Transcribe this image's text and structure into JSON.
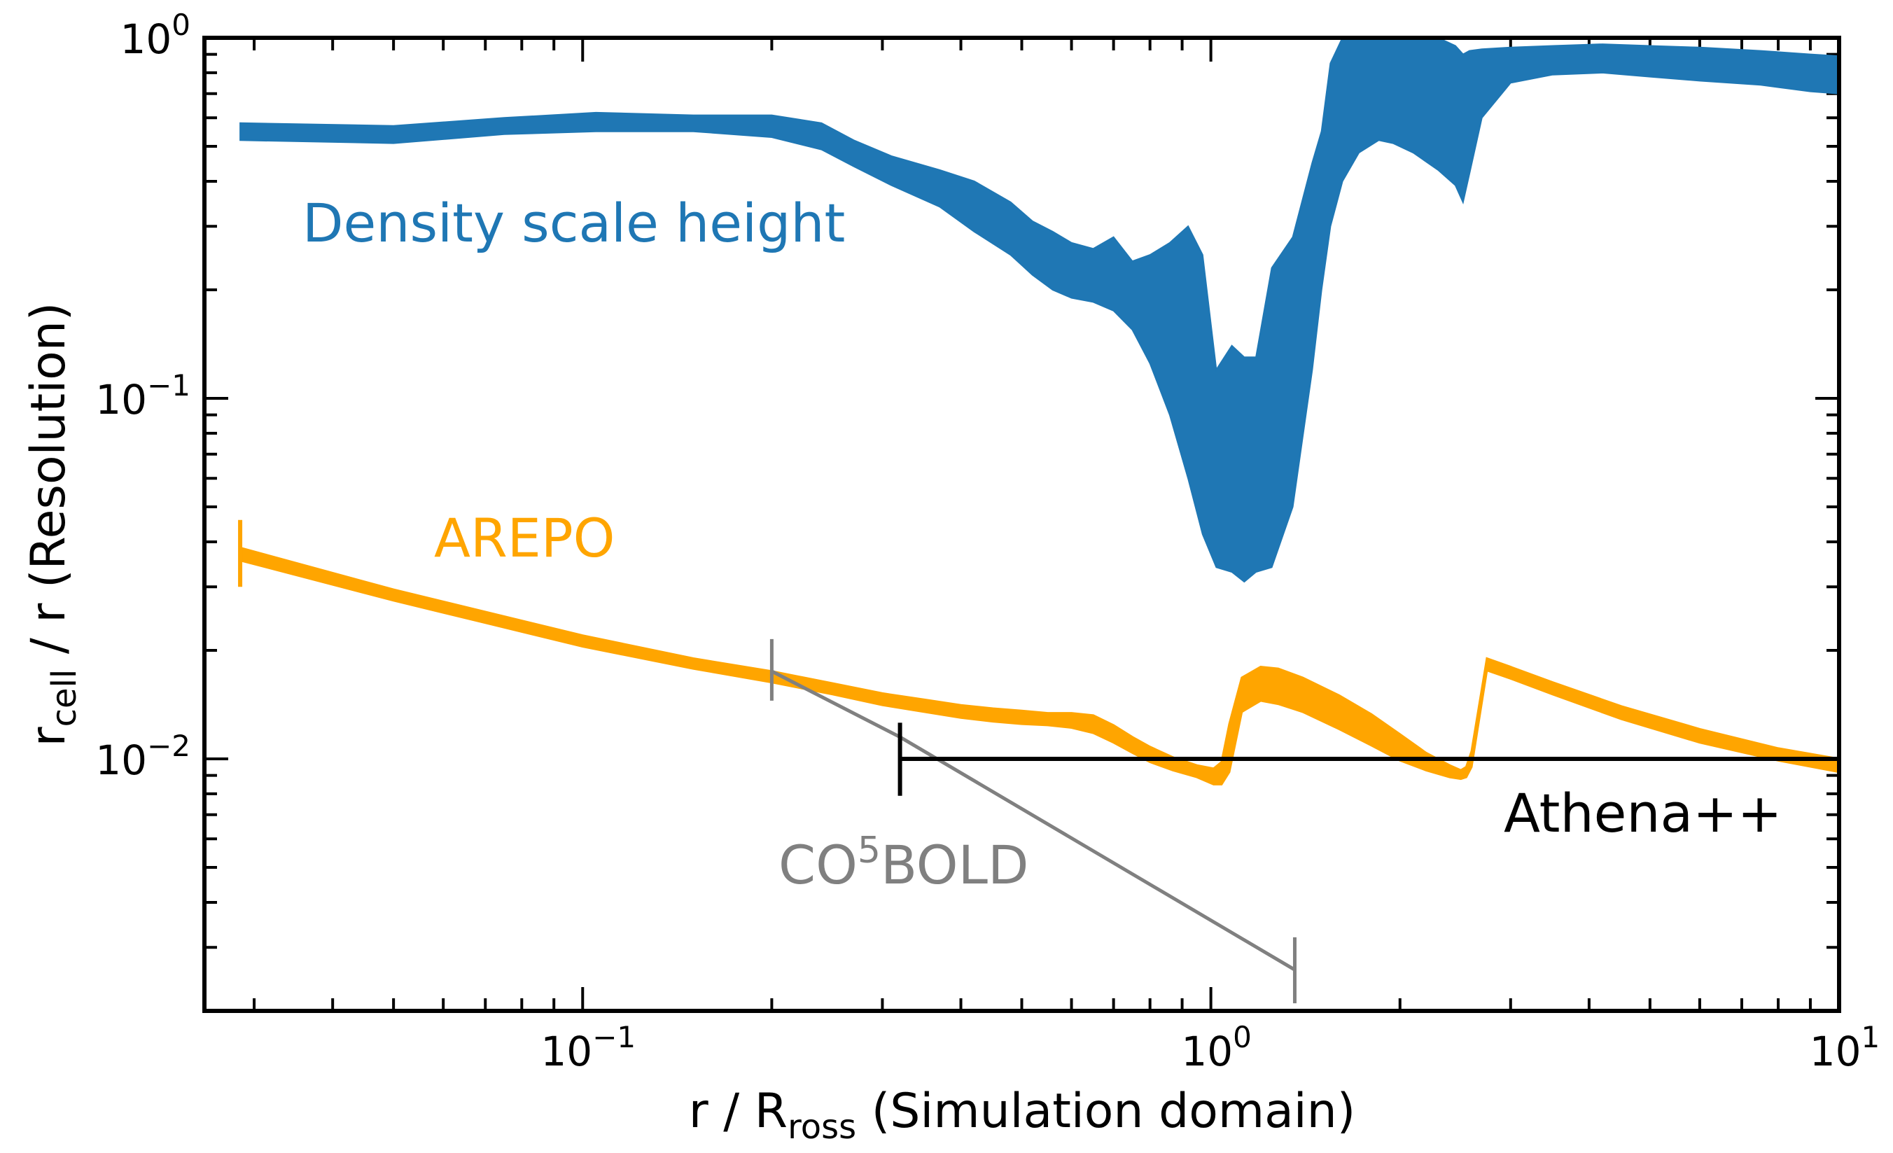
{
  "chart_data": {
    "type": "line",
    "title": "",
    "xscale": "log",
    "yscale": "log",
    "xlim": [
      0.025,
      10
    ],
    "ylim": [
      0.002,
      1
    ],
    "xlabel": {
      "main": "r / R",
      "sub": "ross",
      "rest": " (Simulation domain)"
    },
    "ylabel": {
      "main": "r",
      "sub": "cell",
      "rest": " / r (Resolution)"
    },
    "x_ticks": [
      {
        "value": 0.1,
        "base": "10",
        "exp": "−1"
      },
      {
        "value": 1,
        "base": "10",
        "exp": "0"
      },
      {
        "value": 10,
        "base": "10",
        "exp": "1"
      }
    ],
    "y_ticks": [
      {
        "value": 0.01,
        "base": "10",
        "exp": "−2"
      },
      {
        "value": 0.1,
        "base": "10",
        "exp": "−1"
      },
      {
        "value": 1,
        "base": "10",
        "exp": "0"
      }
    ],
    "colors": {
      "density": "#1f77b4",
      "arepo": "#ffa500",
      "athena": "#000000",
      "co5bold": "#808080"
    },
    "series": [
      {
        "name": "Density scale height",
        "kind": "band",
        "label": "Density scale height",
        "x": [
          0.0285,
          0.05,
          0.075,
          0.105,
          0.15,
          0.2,
          0.24,
          0.27,
          0.31,
          0.37,
          0.42,
          0.48,
          0.52,
          0.56,
          0.6,
          0.65,
          0.7,
          0.75,
          0.8,
          0.86,
          0.92,
          0.97,
          1.02,
          1.08,
          1.13,
          1.18,
          1.25,
          1.35,
          1.45,
          1.5,
          1.55,
          1.62,
          1.72,
          1.85,
          1.95,
          2.1,
          2.3,
          2.45,
          2.52,
          2.58,
          2.7,
          3.0,
          3.5,
          4.2,
          5.0,
          6.0,
          7.5,
          9.0,
          10.0
        ],
        "lower": [
          0.52,
          0.51,
          0.54,
          0.55,
          0.55,
          0.53,
          0.49,
          0.44,
          0.39,
          0.34,
          0.29,
          0.25,
          0.22,
          0.2,
          0.19,
          0.185,
          0.175,
          0.155,
          0.125,
          0.09,
          0.06,
          0.042,
          0.034,
          0.033,
          0.031,
          0.033,
          0.034,
          0.05,
          0.12,
          0.2,
          0.3,
          0.4,
          0.48,
          0.52,
          0.51,
          0.48,
          0.43,
          0.39,
          0.35,
          0.42,
          0.6,
          0.75,
          0.79,
          0.8,
          0.78,
          0.76,
          0.74,
          0.71,
          0.7
        ],
        "upper": [
          0.58,
          0.57,
          0.6,
          0.62,
          0.61,
          0.61,
          0.58,
          0.52,
          0.47,
          0.43,
          0.4,
          0.35,
          0.31,
          0.29,
          0.27,
          0.26,
          0.28,
          0.24,
          0.25,
          0.27,
          0.3,
          0.25,
          0.12,
          0.14,
          0.13,
          0.13,
          0.23,
          0.28,
          0.45,
          0.55,
          0.85,
          1.0,
          1.0,
          1.0,
          1.0,
          1.0,
          1.0,
          0.95,
          0.9,
          0.92,
          0.93,
          0.94,
          0.95,
          0.96,
          0.95,
          0.94,
          0.92,
          0.9,
          0.89
        ]
      },
      {
        "name": "AREPO",
        "kind": "band",
        "label": "AREPO",
        "x": [
          0.0285,
          0.05,
          0.1,
          0.15,
          0.2,
          0.25,
          0.3,
          0.35,
          0.4,
          0.45,
          0.5,
          0.55,
          0.6,
          0.65,
          0.7,
          0.75,
          0.8,
          0.87,
          0.95,
          1.01,
          1.04,
          1.07,
          1.12,
          1.2,
          1.28,
          1.4,
          1.6,
          1.8,
          2.0,
          2.2,
          2.4,
          2.5,
          2.55,
          2.6,
          2.75,
          3.0,
          3.5,
          4.5,
          6.0,
          8.0,
          10.0
        ],
        "lower": [
          0.0355,
          0.0275,
          0.0205,
          0.0178,
          0.0163,
          0.0151,
          0.0141,
          0.0135,
          0.013,
          0.0127,
          0.0125,
          0.0124,
          0.0122,
          0.0118,
          0.0111,
          0.0104,
          0.0098,
          0.0093,
          0.0089,
          0.0085,
          0.0085,
          0.0092,
          0.0135,
          0.0145,
          0.0142,
          0.0135,
          0.0121,
          0.0109,
          0.0099,
          0.0093,
          0.0089,
          0.0088,
          0.0089,
          0.0095,
          0.0176,
          0.0167,
          0.0151,
          0.0129,
          0.0111,
          0.0099,
          0.0092
        ],
        "upper": [
          0.0385,
          0.0295,
          0.022,
          0.019,
          0.0175,
          0.0162,
          0.0152,
          0.0146,
          0.0141,
          0.0138,
          0.0136,
          0.0134,
          0.0134,
          0.0132,
          0.0124,
          0.0115,
          0.0108,
          0.0101,
          0.0096,
          0.0094,
          0.0098,
          0.0125,
          0.0168,
          0.018,
          0.0178,
          0.0168,
          0.015,
          0.0133,
          0.0117,
          0.0104,
          0.0096,
          0.0093,
          0.0095,
          0.0105,
          0.019,
          0.018,
          0.0163,
          0.014,
          0.0121,
          0.0107,
          0.01
        ]
      },
      {
        "name": "Athena++",
        "kind": "line",
        "label": "Athena++",
        "x": [
          0.32,
          10.0
        ],
        "y": [
          0.01,
          0.01
        ],
        "cap_start": {
          "x": 0.32,
          "y": [
            0.0079,
            0.0126
          ]
        }
      },
      {
        "name": "CO5BOLD",
        "kind": "line",
        "label": {
          "base": "CO",
          "sup": "5",
          "rest": "BOLD"
        },
        "x": [
          0.2,
          0.32,
          1.36
        ],
        "y": [
          0.0175,
          0.0115,
          0.0026
        ],
        "cap_start": {
          "x": 0.2,
          "y": [
            0.0145,
            0.0215
          ]
        },
        "cap_end": {
          "x": 1.36,
          "y": [
            0.0021,
            0.0032
          ]
        }
      }
    ],
    "arepo_cap": {
      "x": 0.0285,
      "y": [
        0.03,
        0.046
      ]
    },
    "annotations": {
      "density": "Density scale height",
      "arepo": "AREPO",
      "athena": "Athena++",
      "co5bold_base": "CO",
      "co5bold_sup": "5",
      "co5bold_rest": "BOLD"
    }
  }
}
